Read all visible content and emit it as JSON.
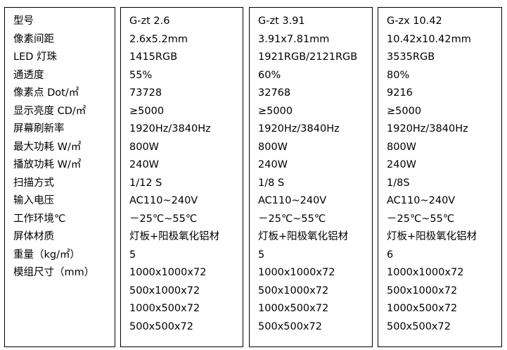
{
  "labels": [
    "型号",
    "像素间距",
    "LED 灯珠",
    "通透度",
    "像素点 Dot/㎡",
    "显示亮度 CD/㎡",
    "屏幕刷新率",
    "最大功耗 W/㎡",
    "播放功耗 W/㎡",
    "扫描方式",
    "输入电压",
    "工作环境℃",
    "屏体材质",
    "重量（kg/㎡）",
    "模组尺寸（mm）"
  ],
  "products": [
    {
      "lines": [
        "G-zt 2.6",
        "2.6x5.2mm",
        "1415RGB",
        "55%",
        "73728",
        "≥5000",
        "1920Hz/3840Hz",
        "800W",
        "240W",
        "1/12 S",
        "AC110~240V",
        "－25℃~55℃",
        "灯板+阳极氧化铝材",
        "5",
        "1000x1000x72",
        "500x1000x72",
        "1000x500x72",
        "500x500x72"
      ]
    },
    {
      "lines": [
        "G-zt 3.91",
        "3.91x7.81mm",
        "1921RGB/2121RGB",
        "60%",
        "32768",
        "≥5000",
        "1920Hz/3840Hz",
        "800W",
        "240W",
        "1/8 S",
        "AC110~240V",
        "－25℃~55℃",
        "灯板+阳极氧化铝材",
        "5",
        "1000x1000x72",
        "500x1000x72",
        "1000x500x72",
        "500x500x72"
      ]
    },
    {
      "lines": [
        "G-zx 10.42",
        "10.42x10.42mm",
        "3535RGB",
        "80%",
        "9216",
        "≥5000",
        "1920Hz/3840Hz",
        "800W",
        "240W",
        "1/8S",
        "AC110~240V",
        "－25℃~55℃",
        "灯板+阳极氧化铝材",
        "6",
        "1000x1000x72",
        "500x1000x72",
        "1000x500x72",
        "500x500x72"
      ]
    }
  ]
}
